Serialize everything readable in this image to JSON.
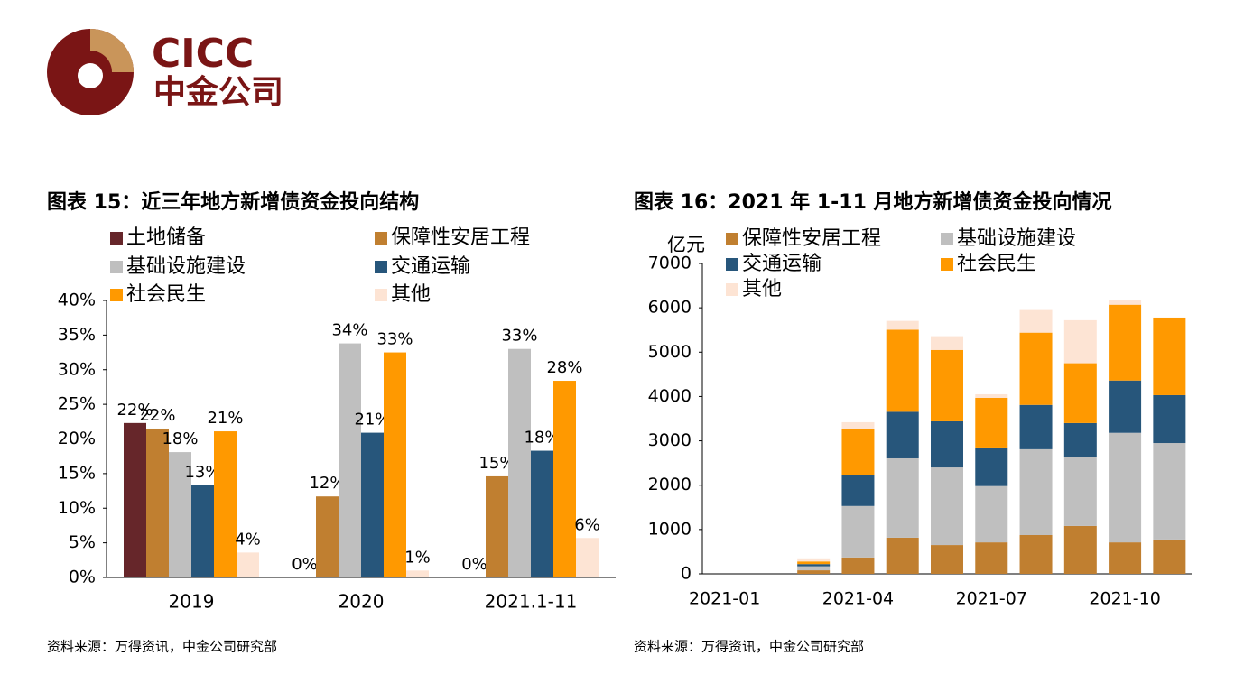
{
  "header": {
    "brand": "CICC",
    "brand_cn": "中金公司"
  },
  "chart_data": [
    {
      "type": "bar",
      "title": "图表 15：近三年地方新增债资金投向结构",
      "categories": [
        "2019",
        "2020",
        "2021.1-11"
      ],
      "series": [
        {
          "name": "土地储备",
          "color": "#66262a",
          "values": [
            22.3,
            0,
            0
          ],
          "value_labels": [
            "22%",
            "0%",
            "0%"
          ]
        },
        {
          "name": "保障性安居工程",
          "color": "#c07f30",
          "values": [
            21.5,
            11.7,
            14.6
          ],
          "value_labels": [
            "22%",
            "12%",
            "15%"
          ]
        },
        {
          "name": "基础设施建设",
          "color": "#bfbfbf",
          "values": [
            18.1,
            33.8,
            33.0
          ],
          "value_labels": [
            "18%",
            "34%",
            "33%"
          ]
        },
        {
          "name": "交通运输",
          "color": "#27567b",
          "values": [
            13.3,
            20.9,
            18.3
          ],
          "value_labels": [
            "13%",
            "21%",
            "18%"
          ]
        },
        {
          "name": "社会民生",
          "color": "#ff9900",
          "values": [
            21.1,
            32.5,
            28.4
          ],
          "value_labels": [
            "21%",
            "33%",
            "28%"
          ]
        },
        {
          "name": "其他",
          "color": "#fde4d4",
          "values": [
            3.6,
            1.0,
            5.7
          ],
          "value_labels": [
            "4%",
            "1%",
            "6%"
          ]
        }
      ],
      "ylim": [
        0,
        40
      ],
      "yticks": [
        {
          "value": 0,
          "label": "0%"
        },
        {
          "value": 5,
          "label": "5%"
        },
        {
          "value": 10,
          "label": "10%"
        },
        {
          "value": 15,
          "label": "15%"
        },
        {
          "value": 20,
          "label": "20%"
        },
        {
          "value": 25,
          "label": "25%"
        },
        {
          "value": 30,
          "label": "30%"
        },
        {
          "value": 35,
          "label": "35%"
        },
        {
          "value": 40,
          "label": "40%"
        }
      ],
      "source": "资料来源：万得资讯，中金公司研究部"
    },
    {
      "type": "stacked_bar",
      "title": "图表 16：2021 年 1-11 月地方新增债资金投向情况",
      "ylabel": "亿元",
      "categories": [
        "2021-01",
        null,
        null,
        "2021-04",
        null,
        null,
        "2021-07",
        null,
        null,
        "2021-10",
        null
      ],
      "series": [
        {
          "name": "保障性安居工程",
          "color": "#c07f30",
          "values": [
            0,
            0,
            80,
            370,
            815,
            650,
            710,
            875,
            1080,
            710,
            775
          ]
        },
        {
          "name": "基础设施建设",
          "color": "#bfbfbf",
          "values": [
            0,
            0,
            90,
            1160,
            1790,
            1750,
            1270,
            1935,
            1550,
            2470,
            2175
          ]
        },
        {
          "name": "交通运输",
          "color": "#27567b",
          "values": [
            0,
            0,
            50,
            690,
            1050,
            1040,
            870,
            1000,
            770,
            1180,
            1080
          ]
        },
        {
          "name": "社会民生",
          "color": "#ff9900",
          "values": [
            0,
            0,
            60,
            1040,
            1850,
            1610,
            1120,
            1630,
            1350,
            1710,
            1750
          ]
        },
        {
          "name": "其他",
          "color": "#fde4d4",
          "values": [
            0,
            0,
            70,
            160,
            200,
            310,
            80,
            510,
            970,
            100,
            0
          ]
        }
      ],
      "ylim": [
        0,
        7000
      ],
      "yticks": [
        0,
        1000,
        2000,
        3000,
        4000,
        5000,
        6000,
        7000
      ],
      "source": "资料来源：万得资讯，中金公司研究部"
    }
  ]
}
